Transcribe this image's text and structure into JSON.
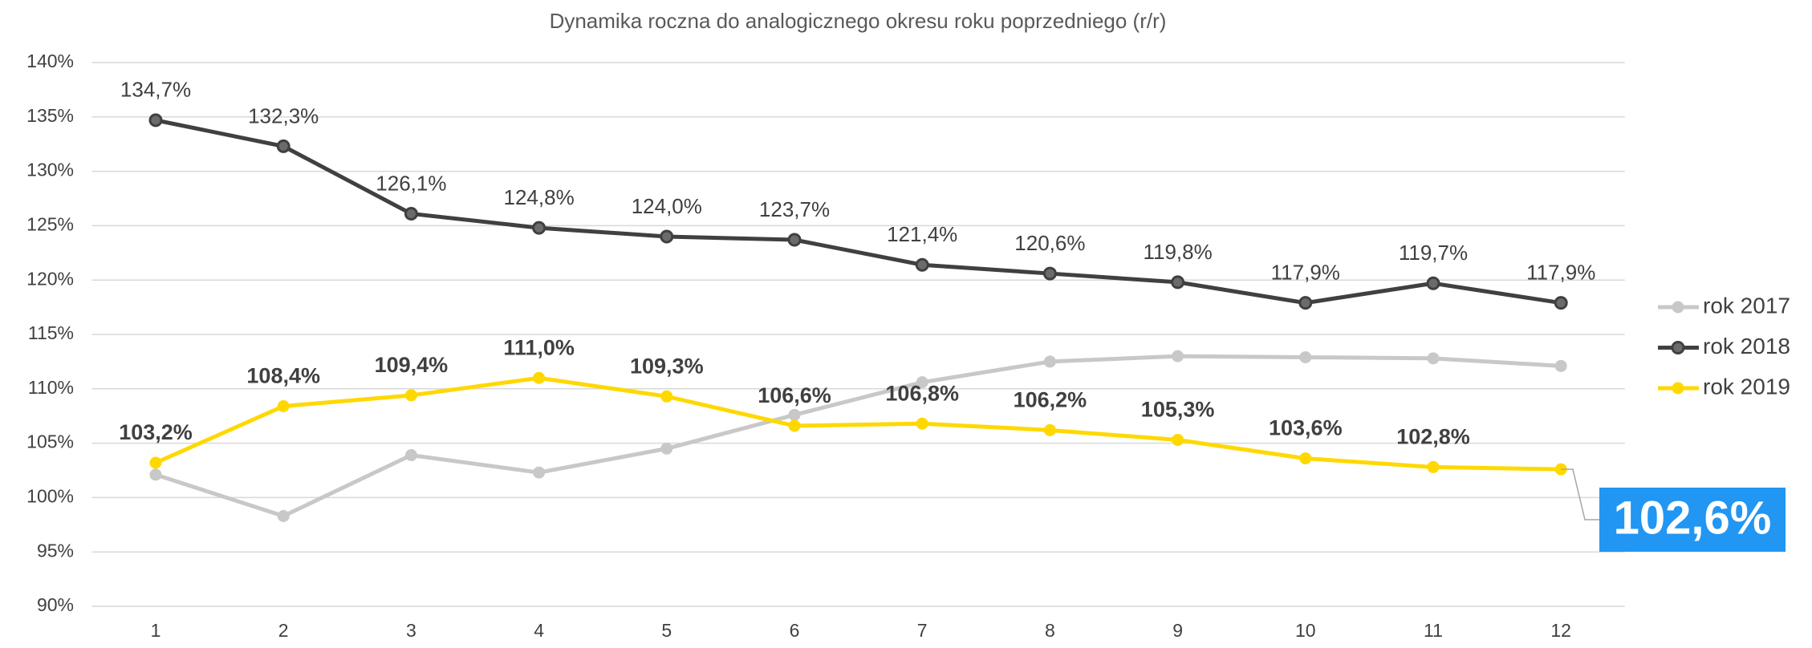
{
  "chart_data": {
    "type": "line",
    "title": "Dynamika roczna do analogicznego okresu roku poprzedniego (r/r)",
    "categories": [
      1,
      2,
      3,
      4,
      5,
      6,
      7,
      8,
      9,
      10,
      11,
      12
    ],
    "ylim": [
      90,
      140
    ],
    "yticks": [
      {
        "value": 90,
        "label": "90%"
      },
      {
        "value": 95,
        "label": "95%"
      },
      {
        "value": 100,
        "label": "100%"
      },
      {
        "value": 105,
        "label": "105%"
      },
      {
        "value": 110,
        "label": "110%"
      },
      {
        "value": 115,
        "label": "115%"
      },
      {
        "value": 120,
        "label": "120%"
      },
      {
        "value": 125,
        "label": "125%"
      },
      {
        "value": 130,
        "label": "130%"
      },
      {
        "value": 135,
        "label": "135%"
      },
      {
        "value": 140,
        "label": "140%"
      }
    ],
    "grid": true,
    "legend": "right",
    "series": [
      {
        "name": "rok 2017",
        "color": "#c8c8c8",
        "values": [
          102.1,
          98.3,
          103.9,
          102.3,
          104.5,
          107.6,
          110.6,
          112.5,
          113.0,
          112.9,
          112.8,
          112.1
        ]
      },
      {
        "name": "rok 2018",
        "color": "#404040",
        "values": [
          134.7,
          132.3,
          126.1,
          124.8,
          124.0,
          123.7,
          121.4,
          120.6,
          119.8,
          117.9,
          119.7,
          117.9
        ],
        "value_labels": [
          "134,7%",
          "132,3%",
          "126,1%",
          "124,8%",
          "124,0%",
          "123,7%",
          "121,4%",
          "120,6%",
          "119,8%",
          "117,9%",
          "119,7%",
          "117,9%"
        ]
      },
      {
        "name": "rok 2019",
        "color": "#ffd800",
        "values": [
          103.2,
          108.4,
          109.4,
          111.0,
          109.3,
          106.6,
          106.8,
          106.2,
          105.3,
          103.6,
          102.8,
          102.6
        ],
        "value_labels": [
          "103,2%",
          "108,4%",
          "109,4%",
          "111,0%",
          "109,3%",
          "106,6%",
          "106,8%",
          "106,2%",
          "105,3%",
          "103,6%",
          "102,8%",
          "102,6%"
        ]
      }
    ]
  }
}
